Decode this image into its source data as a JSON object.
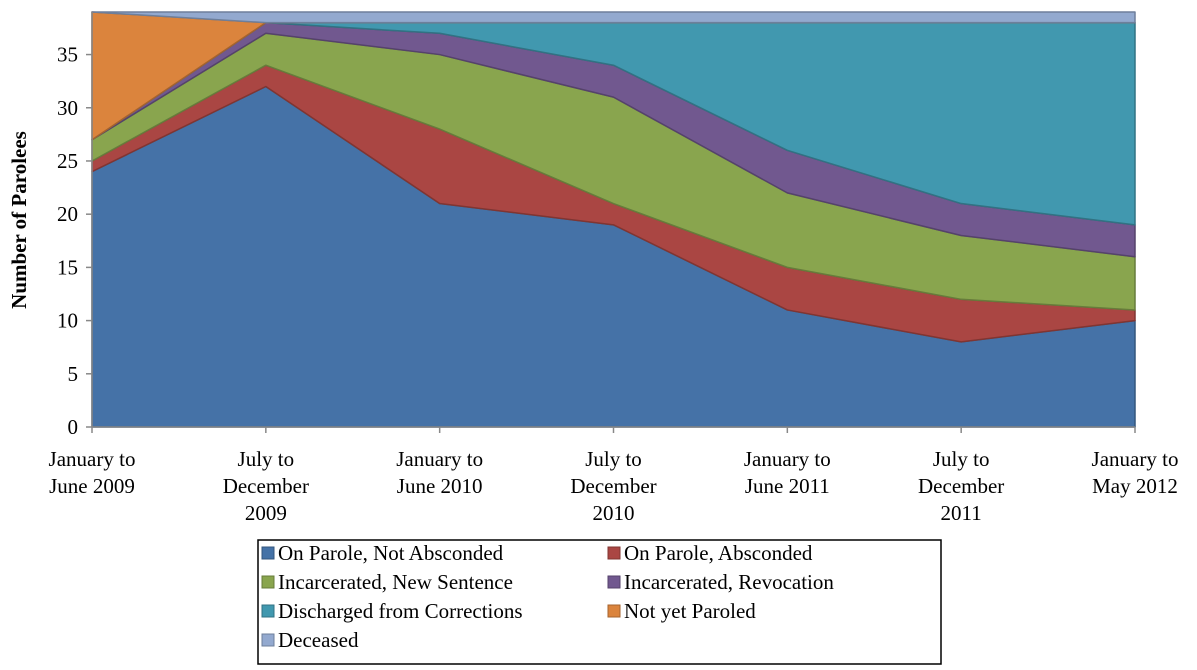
{
  "chart_data": {
    "type": "stacked-area",
    "y_label": "Number of Parolees",
    "categories": [
      "January to\nJune 2009",
      "July to\nDecember\n2009",
      "January to\nJune 2010",
      "July to\nDecember\n2010",
      "January to\nJune 2011",
      "July to\nDecember\n2011",
      "January to\nMay 2012"
    ],
    "series": [
      {
        "name": "On Parole, Not Absconded",
        "color": "#4572a7",
        "values": [
          24,
          32,
          21,
          19,
          11,
          8,
          10
        ]
      },
      {
        "name": "On Parole, Absconded",
        "color": "#aa4643",
        "values": [
          1,
          2,
          7,
          2,
          4,
          4,
          1
        ]
      },
      {
        "name": "Incarcerated, New Sentence",
        "color": "#89a54e",
        "values": [
          2,
          3,
          7,
          10,
          7,
          6,
          5
        ]
      },
      {
        "name": "Incarcerated, Revocation",
        "color": "#71588f",
        "values": [
          0,
          1,
          2,
          3,
          4,
          3,
          3
        ]
      },
      {
        "name": "Discharged from Corrections",
        "color": "#4198af",
        "values": [
          0,
          0,
          1,
          4,
          12,
          17,
          19
        ]
      },
      {
        "name": "Not yet Paroled",
        "color": "#db843d",
        "values": [
          12,
          0,
          0,
          0,
          0,
          0,
          0
        ]
      },
      {
        "name": "Deceased",
        "color": "#93a9cf",
        "values": [
          0,
          1,
          1,
          1,
          1,
          1,
          1
        ]
      }
    ],
    "ylim": [
      0,
      39
    ],
    "yticks": [
      0,
      5,
      10,
      15,
      20,
      25,
      30,
      35
    ]
  }
}
